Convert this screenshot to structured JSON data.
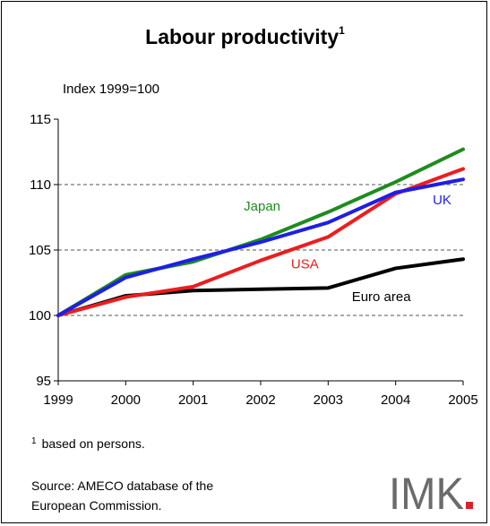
{
  "title": "Labour productivity",
  "title_superscript": "1",
  "subtitle": "Index 1999=100",
  "footnote": {
    "mark": "1",
    "text": "based on persons."
  },
  "source": {
    "line1": "Source: AMECO database of the",
    "line2": "European Commission."
  },
  "logo": {
    "text": "IMK",
    "accent_color": "#d6232a"
  },
  "chart_data": {
    "type": "line",
    "x": [
      1999,
      2000,
      2001,
      2002,
      2003,
      2004,
      2005
    ],
    "ylim": [
      95,
      115
    ],
    "yticks": [
      95,
      100,
      105,
      110,
      115
    ],
    "grid": "horizontal dashed at 100, 105, 110",
    "series": [
      {
        "name": "Japan",
        "color": "#1e8c1e",
        "values": [
          100,
          103.1,
          104.1,
          105.8,
          107.9,
          110.2,
          112.7
        ]
      },
      {
        "name": "UK",
        "color": "#1e1ee6",
        "values": [
          100,
          102.9,
          104.3,
          105.6,
          107.1,
          109.4,
          110.4
        ]
      },
      {
        "name": "USA",
        "color": "#ee1c1c",
        "values": [
          100,
          101.4,
          102.2,
          104.2,
          106.0,
          109.3,
          111.2
        ]
      },
      {
        "name": "Euro area",
        "color": "#000000",
        "values": [
          100,
          101.5,
          101.9,
          102.0,
          102.1,
          103.6,
          104.3
        ]
      }
    ]
  }
}
